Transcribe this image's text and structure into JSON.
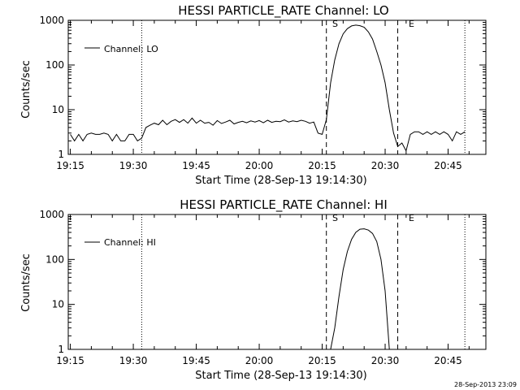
{
  "footer": {
    "timestamp": "28-Sep-2013 23:09"
  },
  "chart_data": [
    {
      "type": "line",
      "title": "HESSI PARTICLE_RATE Channel: LO",
      "xlabel": "Start Time (28-Sep-13 19:14:30)",
      "ylabel": "Counts/sec",
      "yscale": "log",
      "xlim": [
        "19:15",
        "20:54"
      ],
      "ylim": [
        1,
        1000
      ],
      "x_ticks": [
        "19:15",
        "19:30",
        "19:45",
        "20:00",
        "20:15",
        "20:30",
        "20:45"
      ],
      "y_ticks": [
        "1",
        "10",
        "100",
        "1000"
      ],
      "legend": {
        "placement": "top-left",
        "entries": [
          "Channel: LO"
        ]
      },
      "markers": [
        {
          "label": "S",
          "time": "20:16",
          "style": "dashed"
        },
        {
          "label": "E",
          "time": "20:33",
          "style": "dashed"
        }
      ],
      "vlines": [
        {
          "time": "19:32",
          "style": "dotted"
        },
        {
          "time": "20:49",
          "style": "dotted"
        }
      ],
      "series": [
        {
          "name": "Channel: LO",
          "x": [
            "19:15",
            "19:16",
            "19:17",
            "19:18",
            "19:19",
            "19:20",
            "19:21",
            "19:22",
            "19:23",
            "19:24",
            "19:25",
            "19:26",
            "19:27",
            "19:28",
            "19:29",
            "19:30",
            "19:31",
            "19:32",
            "19:33",
            "19:34",
            "19:35",
            "19:36",
            "19:37",
            "19:38",
            "19:39",
            "19:40",
            "19:41",
            "19:42",
            "19:43",
            "19:44",
            "19:45",
            "19:46",
            "19:47",
            "19:48",
            "19:49",
            "19:50",
            "19:51",
            "19:52",
            "19:53",
            "19:54",
            "19:55",
            "19:56",
            "19:57",
            "19:58",
            "19:59",
            "20:00",
            "20:01",
            "20:02",
            "20:03",
            "20:04",
            "20:05",
            "20:06",
            "20:07",
            "20:08",
            "20:09",
            "20:10",
            "20:11",
            "20:12",
            "20:13",
            "20:14",
            "20:15",
            "20:16",
            "20:17",
            "20:18",
            "20:19",
            "20:20",
            "20:21",
            "20:22",
            "20:23",
            "20:24",
            "20:25",
            "20:26",
            "20:27",
            "20:28",
            "20:29",
            "20:30",
            "20:31",
            "20:32",
            "20:33",
            "20:34",
            "20:35",
            "20:36",
            "20:37",
            "20:38",
            "20:39",
            "20:40",
            "20:41",
            "20:42",
            "20:43",
            "20:44",
            "20:45",
            "20:46",
            "20:47",
            "20:48",
            "20:49"
          ],
          "values": [
            2.8,
            2,
            2.8,
            2,
            2.8,
            3,
            2.8,
            2.8,
            3,
            2.8,
            2,
            2.8,
            2,
            2,
            2.8,
            2.8,
            2,
            2.3,
            4,
            4.5,
            5,
            4.6,
            5.8,
            4.6,
            5.5,
            6,
            5.2,
            6,
            5,
            6.5,
            5,
            5.8,
            5,
            5.2,
            4.5,
            5.7,
            4.9,
            5.3,
            5.8,
            4.8,
            5.2,
            5.5,
            5.1,
            5.6,
            5.3,
            5.7,
            5.1,
            5.8,
            5.2,
            5.5,
            5.4,
            5.9,
            5.3,
            5.6,
            5.4,
            5.8,
            5.5,
            5,
            5.3,
            3,
            2.8,
            6,
            40,
            130,
            300,
            500,
            650,
            750,
            780,
            760,
            700,
            550,
            380,
            200,
            100,
            40,
            10,
            3,
            1.5,
            1.8,
            1.2,
            2.8,
            3.2,
            3.2,
            2.8,
            3.2,
            2.8,
            3.2,
            2.8,
            3.2,
            2.8,
            2,
            3.2,
            2.8,
            3.2
          ]
        }
      ]
    },
    {
      "type": "line",
      "title": "HESSI PARTICLE_RATE Channel: HI",
      "xlabel": "Start Time (28-Sep-13 19:14:30)",
      "ylabel": "Counts/sec",
      "yscale": "log",
      "xlim": [
        "19:15",
        "20:54"
      ],
      "ylim": [
        1,
        1000
      ],
      "x_ticks": [
        "19:15",
        "19:30",
        "19:45",
        "20:00",
        "20:15",
        "20:30",
        "20:45"
      ],
      "y_ticks": [
        "1",
        "10",
        "100",
        "1000"
      ],
      "legend": {
        "placement": "top-left",
        "entries": [
          "Channel: HI"
        ]
      },
      "markers": [
        {
          "label": "S",
          "time": "20:16",
          "style": "dashed"
        },
        {
          "label": "E",
          "time": "20:33",
          "style": "dashed"
        }
      ],
      "vlines": [
        {
          "time": "19:32",
          "style": "dotted"
        },
        {
          "time": "20:49",
          "style": "dotted"
        }
      ],
      "series": [
        {
          "name": "Channel: HI",
          "x": [
            "20:17",
            "20:18",
            "20:19",
            "20:20",
            "20:21",
            "20:22",
            "20:23",
            "20:24",
            "20:25",
            "20:26",
            "20:27",
            "20:28",
            "20:29",
            "20:30",
            "20:31"
          ],
          "values": [
            1,
            3,
            15,
            60,
            150,
            280,
            400,
            470,
            480,
            450,
            380,
            250,
            100,
            20,
            1
          ]
        }
      ]
    }
  ]
}
